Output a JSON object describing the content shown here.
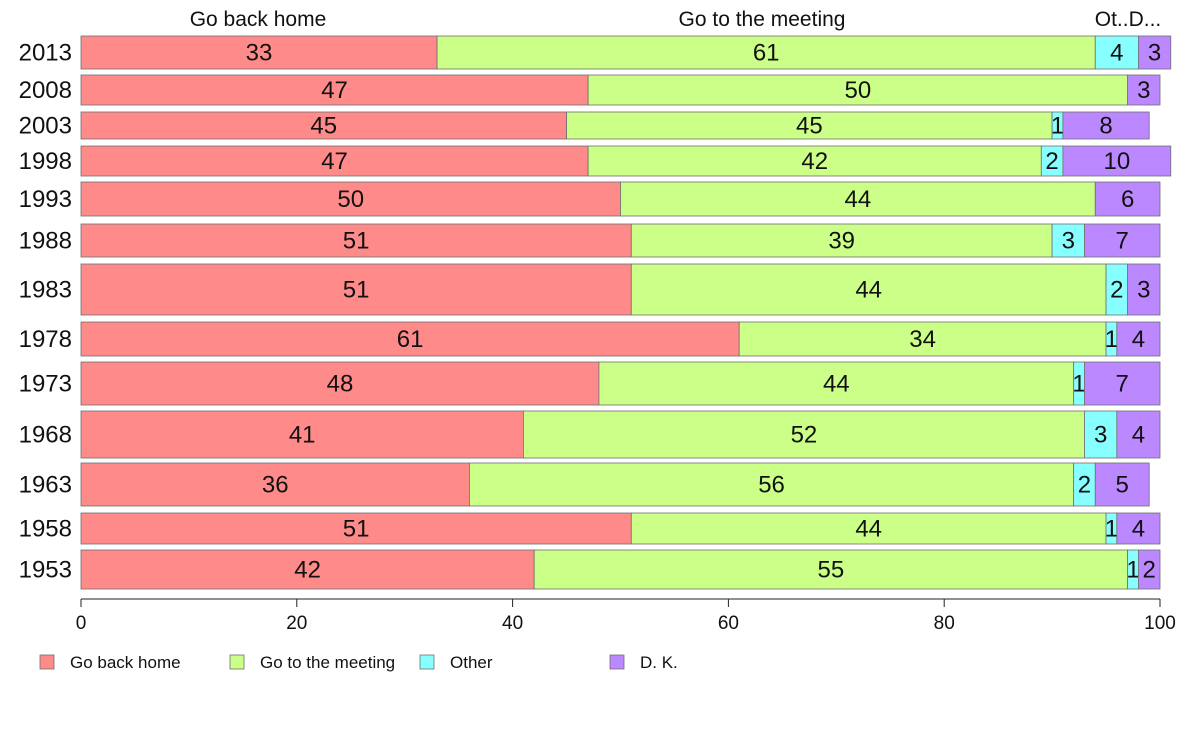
{
  "colors": {
    "go_back_home": "#ff8a8a",
    "go_to_meeting": "#ccff88",
    "other": "#88ffff",
    "dk": "#bb88ff"
  },
  "chart_data": {
    "type": "bar",
    "orientation": "horizontal",
    "stacked": true,
    "categories": [
      "2013",
      "2008",
      "2003",
      "1998",
      "1993",
      "1988",
      "1983",
      "1978",
      "1973",
      "1968",
      "1963",
      "1958",
      "1953"
    ],
    "series": [
      {
        "name": "Go back home",
        "color": "#ff8a8a",
        "values": [
          33,
          47,
          45,
          47,
          50,
          51,
          51,
          61,
          48,
          41,
          36,
          51,
          42
        ]
      },
      {
        "name": "Go to the meeting",
        "color": "#ccff88",
        "values": [
          61,
          50,
          45,
          42,
          44,
          39,
          44,
          34,
          44,
          52,
          56,
          44,
          55
        ]
      },
      {
        "name": "Other",
        "color": "#88ffff",
        "values": [
          4,
          0,
          1,
          2,
          0,
          3,
          2,
          1,
          1,
          3,
          2,
          1,
          1
        ]
      },
      {
        "name": "D. K.",
        "color": "#bb88ff",
        "values": [
          3,
          3,
          8,
          10,
          6,
          7,
          3,
          4,
          7,
          4,
          5,
          4,
          2
        ]
      }
    ],
    "top_labels": [
      "Go back home",
      "Go to the meeting",
      "Ot..D..."
    ],
    "xlim": [
      0,
      100
    ],
    "xticks": [
      "0",
      "20",
      "40",
      "60",
      "80",
      "100"
    ],
    "legend": {
      "placement": "bottom-left",
      "items": [
        "Go back home",
        "Go to the meeting",
        "Other",
        "D. K."
      ]
    },
    "grid": false
  }
}
